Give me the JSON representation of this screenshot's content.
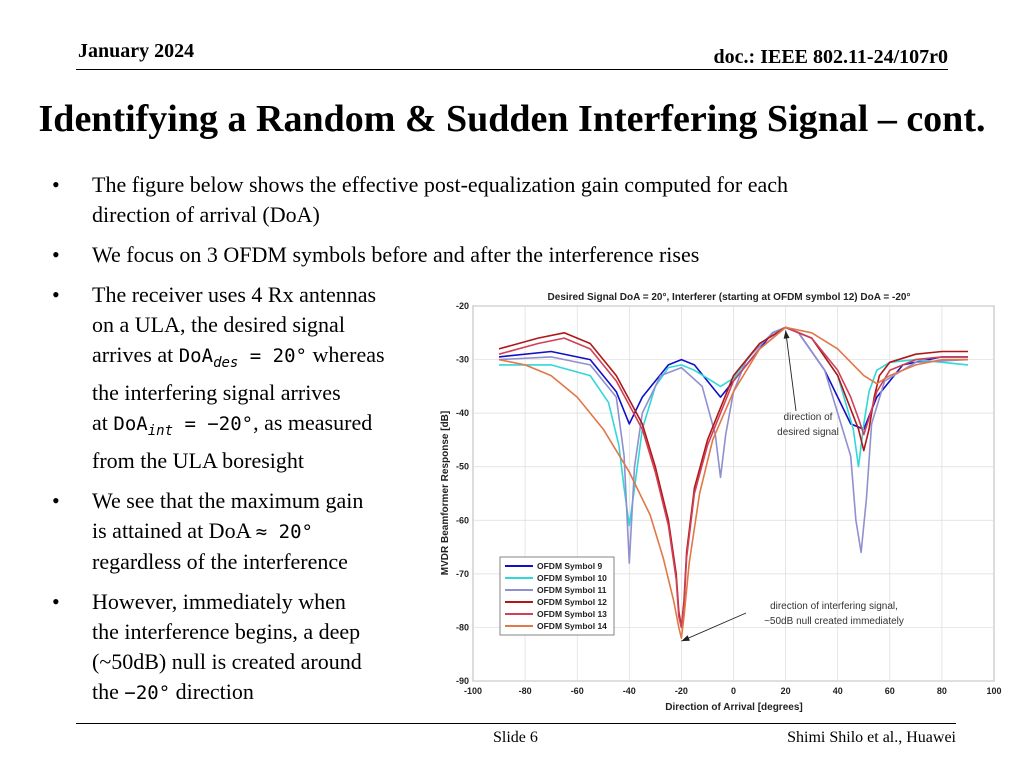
{
  "header": {
    "date": "January 2024",
    "doc": "doc.: IEEE 802.11-24/107r0"
  },
  "title": "Identifying a Random & Sudden Interfering Signal – cont.",
  "bullets": {
    "b1_l1": "The figure below shows the effective post-equalization gain computed for each",
    "b1_l2": "direction of arrival (DoA)",
    "b2": "We focus on 3 OFDM symbols before and after the interference rises",
    "b3_l1": "The receiver uses 4 Rx antennas",
    "b3_l2": "on a ULA, the desired signal",
    "b3_l3a": "arrives at ",
    "b3_m1": "DoA",
    "b3_m1sub": "des",
    "b3_m1rest": " = 20°",
    "b3_l3b": " whereas",
    "b3_l4": "the interfering signal arrives",
    "b3_l5a": "at ",
    "b3_m2": "DoA",
    "b3_m2sub": "int",
    "b3_m2rest": " = −20°",
    "b3_l5b": ", as measured",
    "b3_l6": "from the ULA boresight",
    "b4_l1": "We see that the maximum gain",
    "b4_l2a": "is attained at DoA ",
    "b4_m": "≈ 20°",
    "b4_l3": "regardless of the interference",
    "b5_l1": "However, immediately when",
    "b5_l2": "the interference begins, a deep",
    "b5_l3": "(~50dB) null is created around",
    "b5_l4a": "the ",
    "b5_m": "−20°",
    "b5_l4b": " direction"
  },
  "footer": {
    "slide": "Slide 6",
    "author": "Shimi Shilo et al., Huawei"
  },
  "chart_data": {
    "type": "line",
    "title": "Desired Signal DoA = 20°, Interferer (starting at OFDM symbol 12) DoA = -20°",
    "xlabel": "Direction of Arrival [degrees]",
    "ylabel": "MVDR Beamformer Response [dB]",
    "xlim": [
      -100,
      100
    ],
    "ylim": [
      -90,
      -20
    ],
    "xticks": [
      -100,
      -80,
      -60,
      -40,
      -20,
      0,
      20,
      40,
      60,
      80,
      100
    ],
    "yticks": [
      -20,
      -30,
      -40,
      -50,
      -60,
      -70,
      -80,
      -90
    ],
    "grid": true,
    "legend_position": "bottom-left",
    "annotations": [
      {
        "text_l1": "direction of",
        "text_l2": "desired signal",
        "points_to": [
          20,
          -24
        ]
      },
      {
        "text_l1": "direction of interfering signal,",
        "text_l2": "~50dB null created immediately",
        "points_to": [
          -20,
          -82
        ]
      }
    ],
    "series": [
      {
        "name": "OFDM Symbol 9",
        "color": "#1010c8",
        "x": [
          -90,
          -70,
          -55,
          -45,
          -40,
          -35,
          -25,
          -20,
          -15,
          -5,
          5,
          15,
          20,
          25,
          35,
          45,
          50,
          55,
          65,
          80,
          90
        ],
        "y": [
          -29.5,
          -28.5,
          -30,
          -36,
          -42,
          -37,
          -31,
          -30,
          -31,
          -37,
          -31,
          -25,
          -24,
          -25,
          -32,
          -42,
          -43,
          -37,
          -31,
          -29.5,
          -29.5
        ]
      },
      {
        "name": "OFDM Symbol 10",
        "color": "#30d8d8",
        "x": [
          -90,
          -70,
          -55,
          -48,
          -44,
          -42,
          -40,
          -38,
          -35,
          -30,
          -25,
          -20,
          -15,
          -10,
          -5,
          0,
          10,
          20,
          30,
          40,
          46,
          48,
          50,
          52,
          55,
          60,
          70,
          80,
          90
        ],
        "y": [
          -31,
          -31,
          -33,
          -38,
          -46,
          -54,
          -61,
          -54,
          -43,
          -35,
          -31.5,
          -31,
          -32,
          -33.5,
          -35,
          -33.5,
          -27,
          -24,
          -26,
          -33,
          -43,
          -50,
          -42,
          -36,
          -32,
          -30.5,
          -30,
          -30.5,
          -31
        ]
      },
      {
        "name": "OFDM Symbol 11",
        "color": "#9090d0",
        "x": [
          -90,
          -70,
          -55,
          -45,
          -42,
          -40,
          -38,
          -35,
          -28,
          -20,
          -12,
          -7,
          -5,
          -3,
          0,
          5,
          15,
          20,
          25,
          35,
          45,
          47,
          49,
          51,
          53,
          58,
          70,
          90
        ],
        "y": [
          -30,
          -29.5,
          -31,
          -37,
          -48,
          -68,
          -50,
          -40,
          -33,
          -31.5,
          -35,
          -44,
          -52,
          -44,
          -36,
          -30,
          -25,
          -24,
          -25,
          -32,
          -48,
          -60,
          -66,
          -56,
          -42,
          -34,
          -30.5,
          -30
        ]
      },
      {
        "name": "OFDM Symbol 12",
        "color": "#b01818",
        "x": [
          -90,
          -75,
          -65,
          -55,
          -45,
          -35,
          -30,
          -25,
          -22,
          -21,
          -20,
          -19,
          -18,
          -15,
          -10,
          -5,
          0,
          10,
          20,
          30,
          40,
          48,
          50,
          52,
          54,
          56,
          60,
          70,
          80,
          90
        ],
        "y": [
          -28,
          -26,
          -25,
          -27,
          -33,
          -42,
          -50,
          -60,
          -70,
          -77,
          -80,
          -75,
          -66,
          -54,
          -45,
          -39,
          -33,
          -27,
          -24,
          -26,
          -33,
          -43,
          -47,
          -43,
          -37,
          -33,
          -30.5,
          -29,
          -28.5,
          -28.5
        ]
      },
      {
        "name": "OFDM Symbol 13",
        "color": "#d04058",
        "x": [
          -90,
          -75,
          -65,
          -55,
          -45,
          -35,
          -30,
          -25,
          -22,
          -21,
          -20,
          -19,
          -18,
          -15,
          -10,
          -5,
          0,
          10,
          20,
          30,
          40,
          45,
          48,
          50,
          52,
          55,
          60,
          70,
          80,
          90
        ],
        "y": [
          -29,
          -27,
          -26,
          -28,
          -34,
          -43,
          -51,
          -61,
          -71,
          -78,
          -80,
          -76,
          -67,
          -55,
          -46,
          -40,
          -34,
          -28,
          -24,
          -26,
          -32,
          -37,
          -41,
          -44,
          -41,
          -36,
          -32,
          -30,
          -29.5,
          -29.5
        ]
      },
      {
        "name": "OFDM Symbol 14",
        "color": "#e07848",
        "x": [
          -90,
          -80,
          -70,
          -60,
          -50,
          -40,
          -32,
          -27,
          -23,
          -21,
          -20,
          -19,
          -17,
          -13,
          -8,
          0,
          10,
          20,
          30,
          40,
          50,
          55,
          60,
          70,
          80,
          90
        ],
        "y": [
          -30,
          -31,
          -33,
          -37,
          -43,
          -51,
          -59,
          -67,
          -75,
          -80,
          -82,
          -78,
          -68,
          -55,
          -45,
          -36,
          -28,
          -24,
          -25,
          -28,
          -33,
          -34.5,
          -33,
          -31,
          -30,
          -30
        ]
      }
    ]
  }
}
